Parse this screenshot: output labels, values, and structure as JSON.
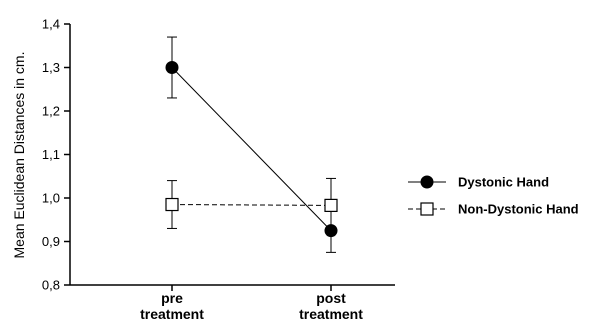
{
  "chart_data": {
    "type": "line",
    "title": "",
    "ylabel": "Mean Euclidean Distances in cm.",
    "xlabel": "",
    "categories": [
      [
        "pre",
        "treatment"
      ],
      [
        "post",
        "treatment"
      ]
    ],
    "ylim": [
      0.8,
      1.4
    ],
    "yticks": [
      0.8,
      0.9,
      1.0,
      1.1,
      1.2,
      1.3,
      1.4
    ],
    "ytick_labels": [
      "0,8",
      "0,9",
      "1,0",
      "1,1",
      "1,2",
      "1,3",
      "1,4"
    ],
    "grid": false,
    "legend_position": "right",
    "series": [
      {
        "name": "Dystonic Hand",
        "marker": "filled-circle",
        "line_style": "solid",
        "values": [
          1.3,
          0.925
        ],
        "error_low": [
          1.23,
          0.875
        ],
        "error_high": [
          1.37,
          0.975
        ]
      },
      {
        "name": "Non-Dystonic Hand",
        "marker": "open-square",
        "line_style": "dashed",
        "values": [
          0.985,
          0.983
        ],
        "error_low": [
          0.93,
          0.925
        ],
        "error_high": [
          1.04,
          1.045
        ]
      }
    ]
  }
}
